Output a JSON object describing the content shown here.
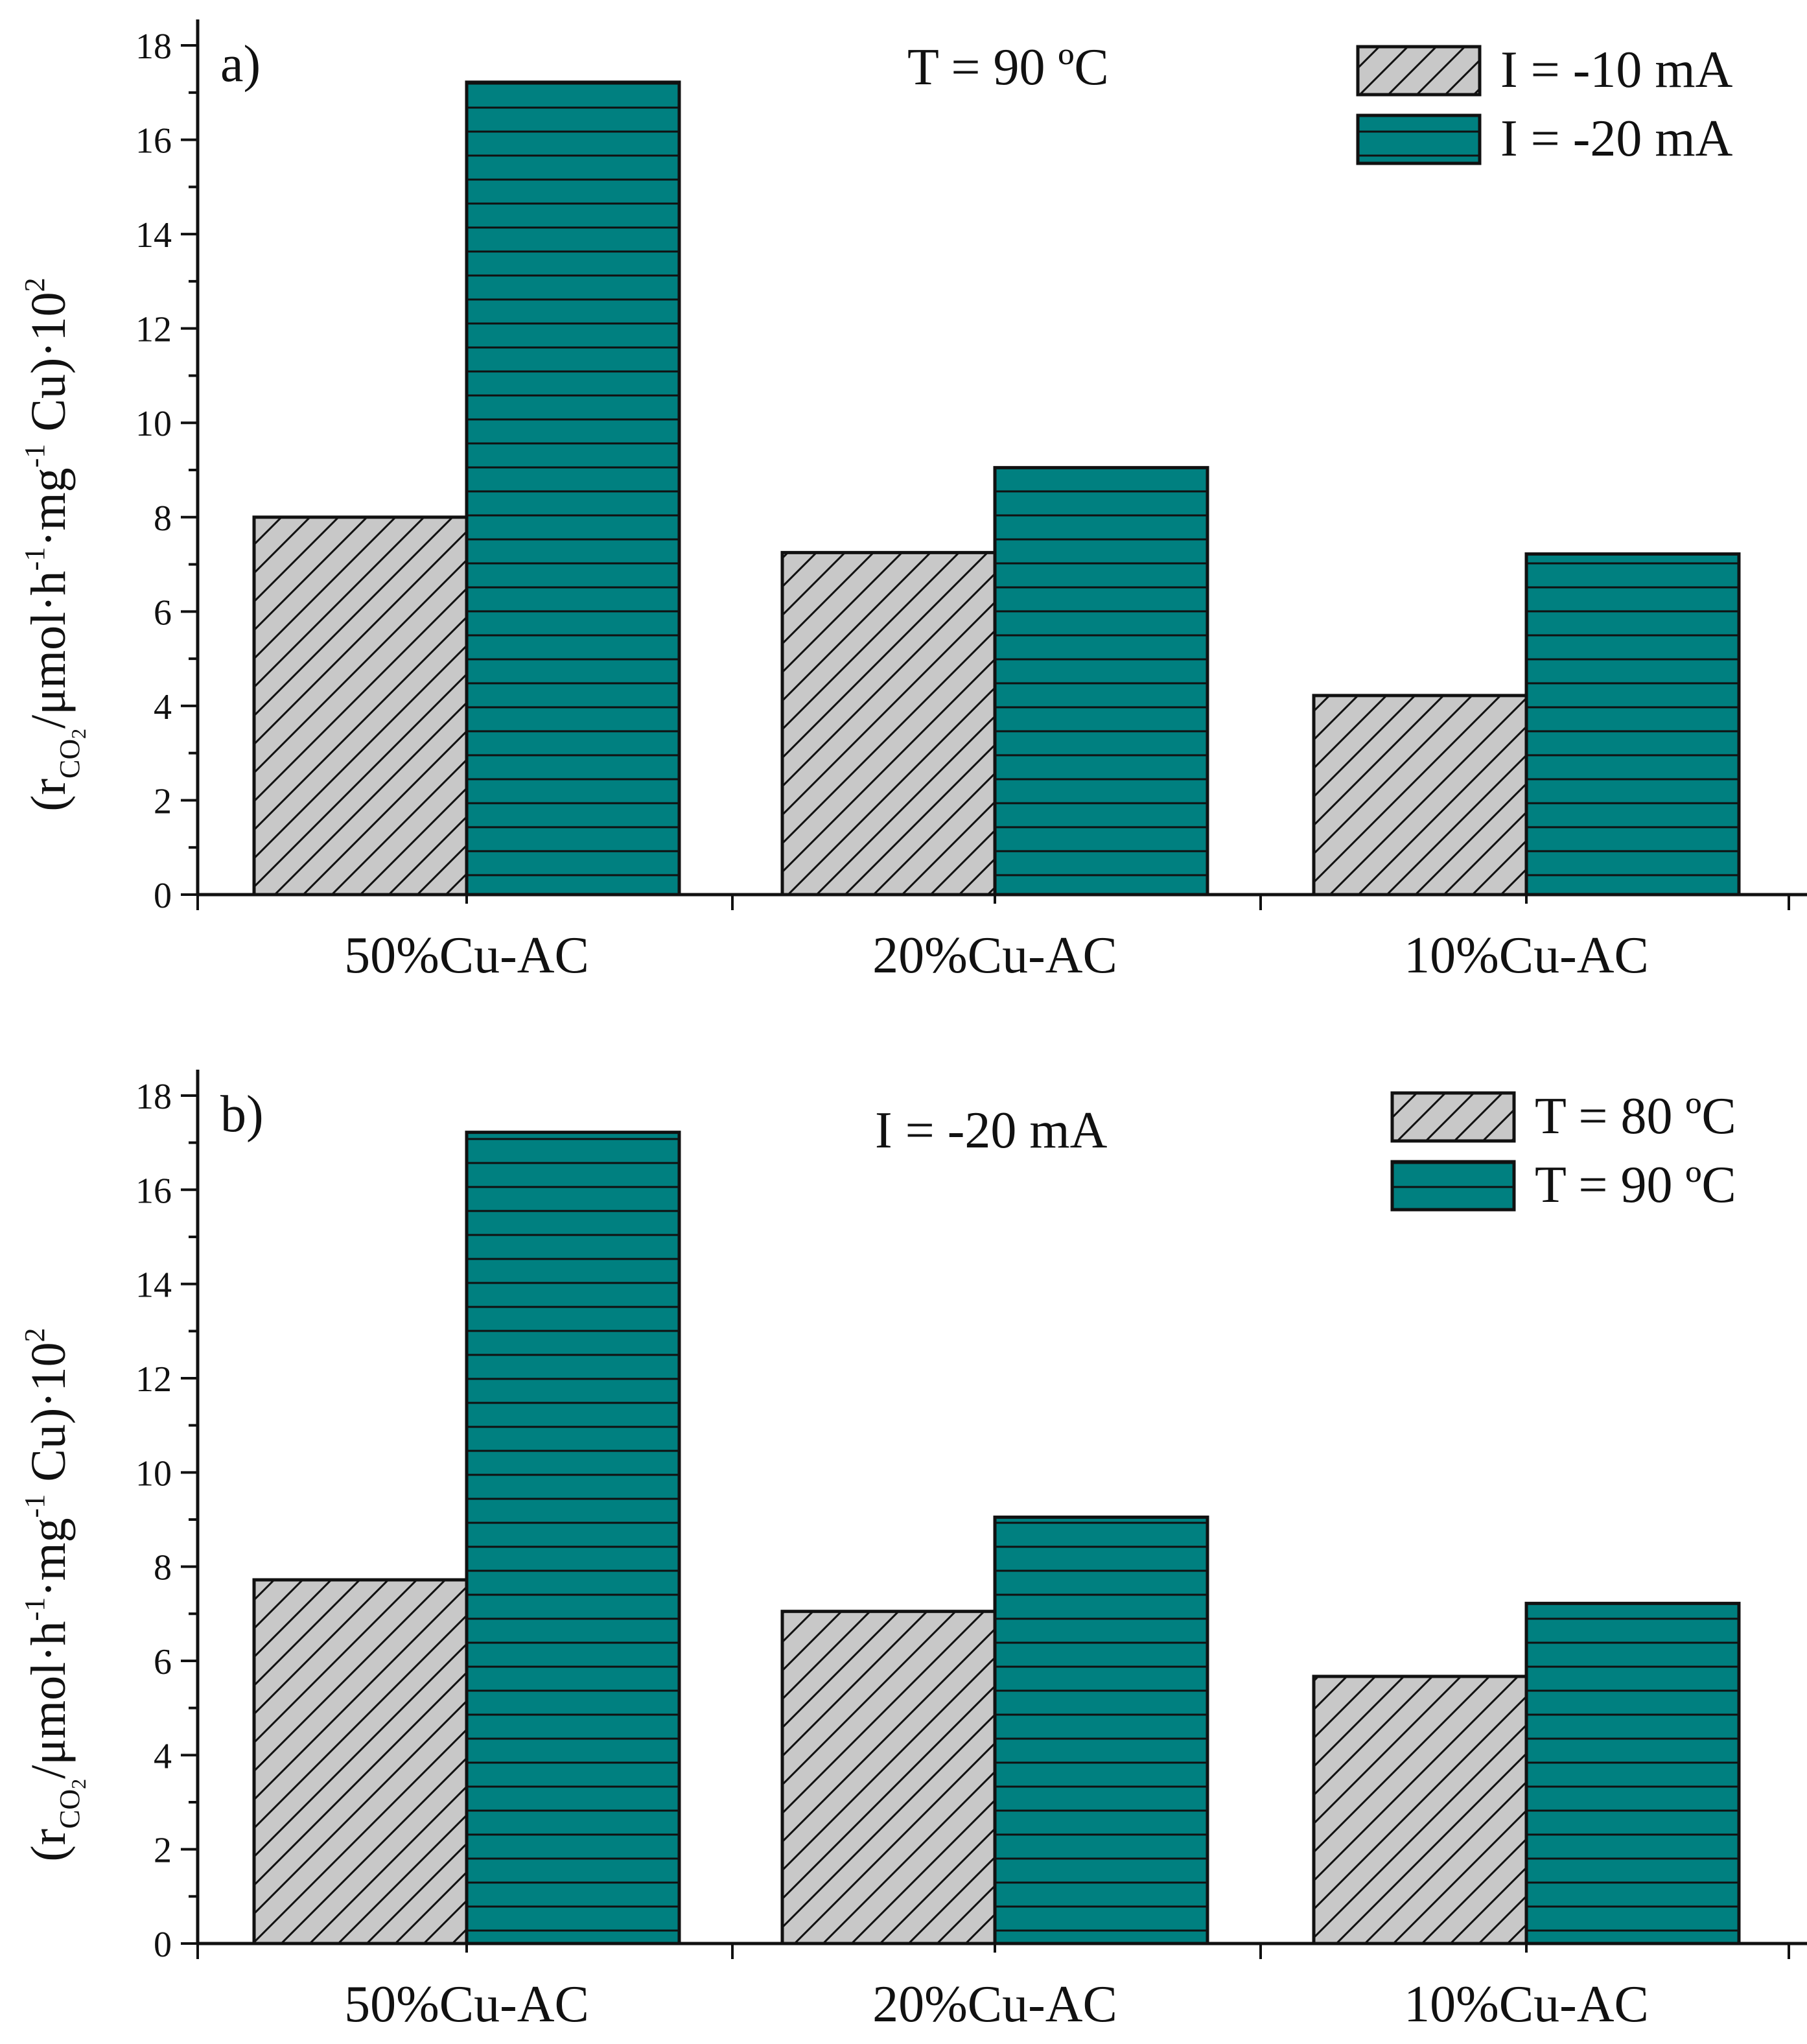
{
  "chart_data": [
    {
      "type": "bar",
      "panel_label": "a)",
      "annotation": "T = 90 ºC",
      "categories": [
        "50%Cu-AC",
        "20%Cu-AC",
        "10%Cu-AC"
      ],
      "series": [
        {
          "name": "I = -10 mA",
          "values": [
            8.0,
            7.25,
            4.22
          ],
          "color": "#c8c8c8",
          "pattern": "diagonal"
        },
        {
          "name": "I = -20 mA",
          "values": [
            17.22,
            9.05,
            7.22
          ],
          "color": "#008080",
          "pattern": "horizontal"
        }
      ],
      "ylim": [
        0,
        18
      ],
      "yticks": [
        "0",
        "2",
        "4",
        "6",
        "8",
        "10",
        "12",
        "14",
        "16",
        "18"
      ],
      "ylabel": {
        "open": "(r",
        "sub": "CO",
        "sub2": "2",
        "main": "/μmol·h",
        "sup1": "-1",
        "mid": "·mg",
        "sup2": "-1",
        "end": " Cu)·10",
        "sup3": "2"
      },
      "legend_position": "top-right"
    },
    {
      "type": "bar",
      "panel_label": "b)",
      "annotation": "I = -20 mA",
      "categories": [
        "50%Cu-AC",
        "20%Cu-AC",
        "10%Cu-AC"
      ],
      "series": [
        {
          "name": "T = 80 ºC",
          "values": [
            7.72,
            7.05,
            5.67
          ],
          "color": "#c8c8c8",
          "pattern": "diagonal"
        },
        {
          "name": "T = 90 ºC",
          "values": [
            17.22,
            9.05,
            7.22
          ],
          "color": "#008080",
          "pattern": "horizontal"
        }
      ],
      "ylim": [
        0,
        18
      ],
      "yticks": [
        "0",
        "2",
        "4",
        "6",
        "8",
        "10",
        "12",
        "14",
        "16",
        "18"
      ],
      "ylabel": {
        "open": "(r",
        "sub": "CO",
        "sub2": "2",
        "main": "/μmol·h",
        "sup1": "-1",
        "mid": "·mg",
        "sup2": "-1",
        "end": " Cu)·10",
        "sup3": "2"
      },
      "legend_position": "top-right"
    }
  ]
}
